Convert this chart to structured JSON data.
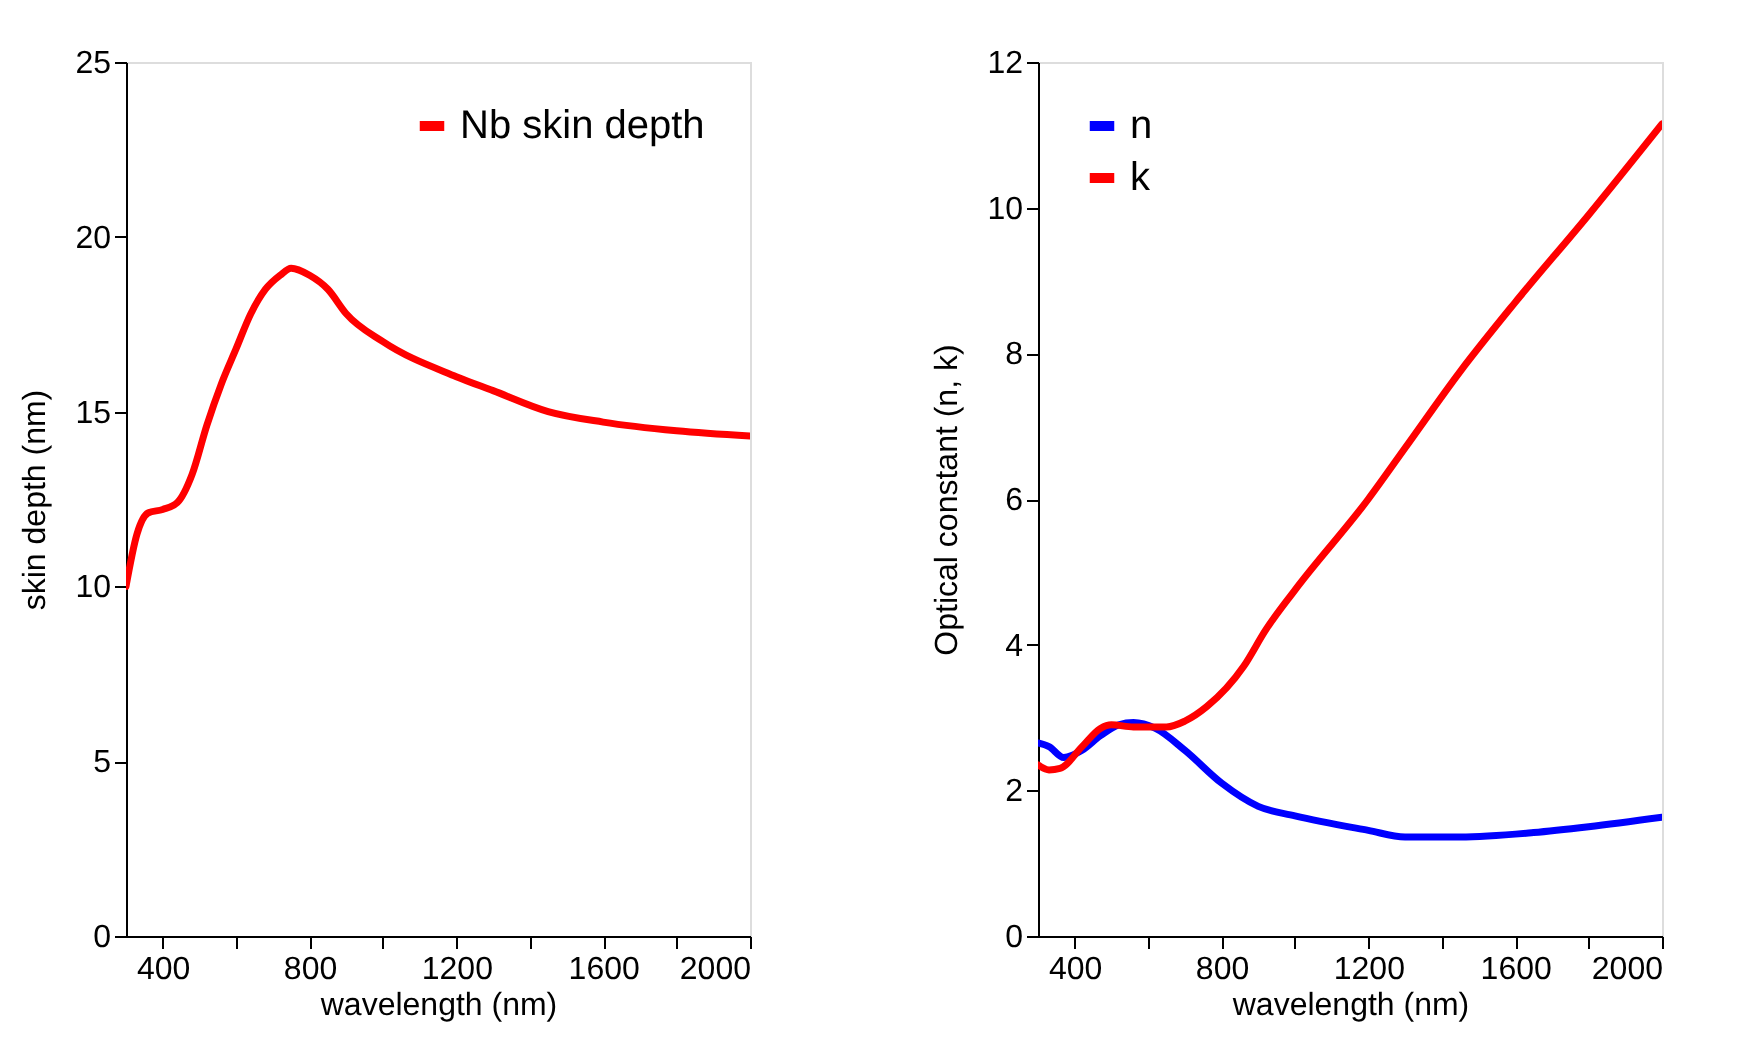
{
  "chart_data": [
    {
      "type": "line",
      "xlabel": "wavelength (nm)",
      "ylabel": "skin depth (nm)",
      "xlim": [
        300,
        2000
      ],
      "ylim": [
        0,
        25
      ],
      "xticks": [
        400,
        {
          "value": 600,
          "label": null
        },
        800,
        {
          "value": 1000,
          "label": null
        },
        1200,
        {
          "value": 1400,
          "label": null
        },
        1600,
        {
          "value": 1800,
          "label": null
        },
        2000
      ],
      "yticks": [
        0,
        5,
        10,
        15,
        20,
        25
      ],
      "grid": false,
      "legend": "top right",
      "marker": "none",
      "line_style": "solid",
      "series": [
        {
          "name": "Nb skin depth",
          "color": "#ff0000",
          "x": [
            300,
            330,
            360,
            400,
            440,
            480,
            520,
            560,
            600,
            640,
            680,
            720,
            750,
            800,
            850,
            900,
            1000,
            1200,
            1300,
            1450,
            1600,
            1800,
            2000
          ],
          "values": [
            10,
            11.5,
            12.1,
            12.2,
            12.4,
            13.2,
            14.6,
            15.8,
            16.8,
            17.8,
            18.5,
            18.9,
            19.1,
            18.9,
            18.5,
            17.8,
            17.0,
            16.0,
            15.6,
            15.0,
            14.7,
            14.45,
            14.3
          ]
        }
      ]
    },
    {
      "type": "line",
      "xlabel": "wavelength (nm)",
      "ylabel": "Optical constant (n, k)",
      "xlim": [
        300,
        2000
      ],
      "ylim": [
        0,
        12
      ],
      "xticks": [
        400,
        {
          "value": 600,
          "label": null
        },
        800,
        {
          "value": 1000,
          "label": null
        },
        1200,
        {
          "value": 1400,
          "label": null
        },
        1600,
        {
          "value": 1800,
          "label": null
        },
        2000
      ],
      "yticks": [
        0,
        2,
        4,
        6,
        8,
        10,
        12
      ],
      "grid": false,
      "legend": "top left",
      "marker": "none",
      "line_style": "solid",
      "series": [
        {
          "name": "n",
          "color": "#0000ff",
          "x": [
            300,
            330,
            370,
            420,
            470,
            520,
            560,
            620,
            700,
            800,
            900,
            1000,
            1200,
            1300,
            1450,
            1650,
            1800,
            2000
          ],
          "values": [
            2.65,
            2.6,
            2.45,
            2.55,
            2.75,
            2.9,
            2.93,
            2.85,
            2.55,
            2.1,
            1.78,
            1.65,
            1.45,
            1.36,
            1.36,
            1.42,
            1.5,
            1.63
          ]
        },
        {
          "name": "k",
          "color": "#ff0000",
          "x": [
            300,
            330,
            360,
            420,
            470,
            500,
            560,
            650,
            700,
            760,
            860,
            920,
            1000,
            1200,
            1300,
            1450,
            1600,
            1800,
            2000
          ],
          "values": [
            2.35,
            2.28,
            2.3,
            2.6,
            2.85,
            2.9,
            2.87,
            2.87,
            2.95,
            3.15,
            3.7,
            4.2,
            4.75,
            6.0,
            6.7,
            7.75,
            8.7,
            9.9,
            11.15
          ]
        }
      ]
    }
  ]
}
